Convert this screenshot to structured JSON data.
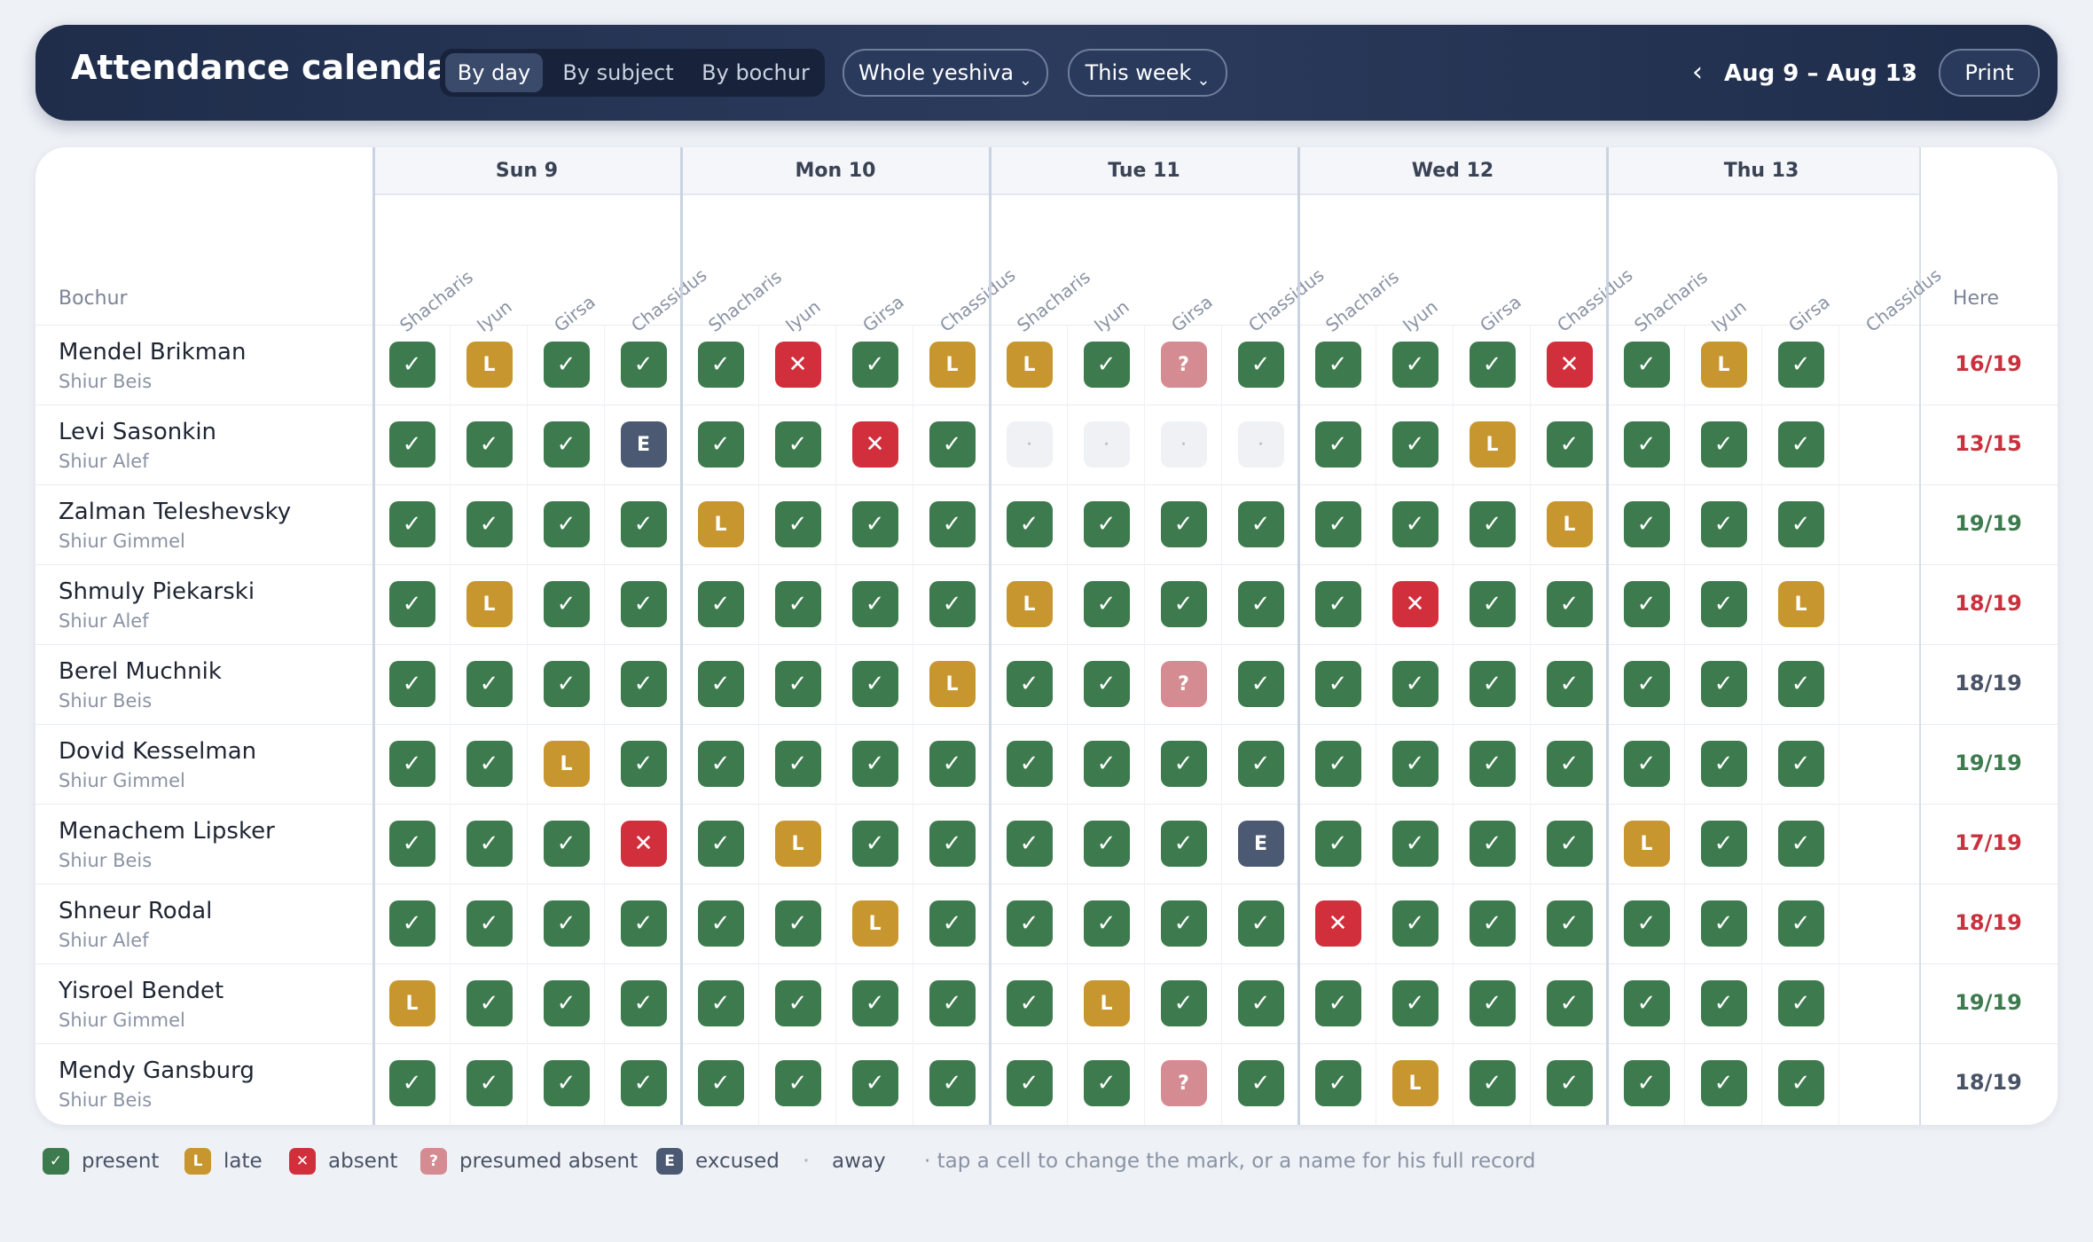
{
  "header": {
    "title": "Attendance calendar",
    "view_tabs": [
      "By day",
      "By subject",
      "By bochur"
    ],
    "active_tab": "By day",
    "scope_filter": "Whole yeshiva",
    "period_filter": "This week",
    "chevron": "⌄",
    "prev_arrow": "‹",
    "next_arrow": "›",
    "date_range": "Aug 9 – Aug 13",
    "print_label": "Print"
  },
  "table": {
    "name_column_label": "Bochur",
    "here_column_label": "Here",
    "days": [
      "Sun 9",
      "Mon 10",
      "Tue 11",
      "Wed 12",
      "Thu 13"
    ],
    "subjects": [
      "Shacharis",
      "Iyun",
      "Girsa",
      "Chassidus"
    ],
    "rows": [
      {
        "name": "Mendel Brikman",
        "shiur": "Shiur Beis",
        "here": "16/19",
        "here_status": "bad",
        "marks": [
          "P",
          "L",
          "P",
          "P",
          "P",
          "A",
          "P",
          "L",
          "L",
          "P",
          "Q",
          "P",
          "P",
          "P",
          "P",
          "A",
          "P",
          "L",
          "P",
          ""
        ]
      },
      {
        "name": "Levi Sasonkin",
        "shiur": "Shiur Alef",
        "here": "13/15",
        "here_status": "bad",
        "marks": [
          "P",
          "P",
          "P",
          "E",
          "P",
          "P",
          "A",
          "P",
          "W",
          "W",
          "W",
          "W",
          "P",
          "P",
          "L",
          "P",
          "P",
          "P",
          "P",
          ""
        ]
      },
      {
        "name": "Zalman Teleshevsky",
        "shiur": "Shiur Gimmel",
        "here": "19/19",
        "here_status": "good",
        "marks": [
          "P",
          "P",
          "P",
          "P",
          "L",
          "P",
          "P",
          "P",
          "P",
          "P",
          "P",
          "P",
          "P",
          "P",
          "P",
          "L",
          "P",
          "P",
          "P",
          ""
        ]
      },
      {
        "name": "Shmuly Piekarski",
        "shiur": "Shiur Alef",
        "here": "18/19",
        "here_status": "bad",
        "marks": [
          "P",
          "L",
          "P",
          "P",
          "P",
          "P",
          "P",
          "P",
          "L",
          "P",
          "P",
          "P",
          "P",
          "A",
          "P",
          "P",
          "P",
          "P",
          "L",
          ""
        ]
      },
      {
        "name": "Berel Muchnik",
        "shiur": "Shiur Beis",
        "here": "18/19",
        "here_status": "neutral",
        "marks": [
          "P",
          "P",
          "P",
          "P",
          "P",
          "P",
          "P",
          "L",
          "P",
          "P",
          "Q",
          "P",
          "P",
          "P",
          "P",
          "P",
          "P",
          "P",
          "P",
          ""
        ]
      },
      {
        "name": "Dovid Kesselman",
        "shiur": "Shiur Gimmel",
        "here": "19/19",
        "here_status": "good",
        "marks": [
          "P",
          "P",
          "L",
          "P",
          "P",
          "P",
          "P",
          "P",
          "P",
          "P",
          "P",
          "P",
          "P",
          "P",
          "P",
          "P",
          "P",
          "P",
          "P",
          ""
        ]
      },
      {
        "name": "Menachem Lipsker",
        "shiur": "Shiur Beis",
        "here": "17/19",
        "here_status": "bad",
        "marks": [
          "P",
          "P",
          "P",
          "A",
          "P",
          "L",
          "P",
          "P",
          "P",
          "P",
          "P",
          "E",
          "P",
          "P",
          "P",
          "P",
          "L",
          "P",
          "P",
          ""
        ]
      },
      {
        "name": "Shneur Rodal",
        "shiur": "Shiur Alef",
        "here": "18/19",
        "here_status": "bad",
        "marks": [
          "P",
          "P",
          "P",
          "P",
          "P",
          "P",
          "L",
          "P",
          "P",
          "P",
          "P",
          "P",
          "A",
          "P",
          "P",
          "P",
          "P",
          "P",
          "P",
          ""
        ]
      },
      {
        "name": "Yisroel Bendet",
        "shiur": "Shiur Gimmel",
        "here": "19/19",
        "here_status": "good",
        "marks": [
          "L",
          "P",
          "P",
          "P",
          "P",
          "P",
          "P",
          "P",
          "P",
          "L",
          "P",
          "P",
          "P",
          "P",
          "P",
          "P",
          "P",
          "P",
          "P",
          ""
        ]
      },
      {
        "name": "Mendy Gansburg",
        "shiur": "Shiur Beis",
        "here": "18/19",
        "here_status": "neutral",
        "marks": [
          "P",
          "P",
          "P",
          "P",
          "P",
          "P",
          "P",
          "P",
          "P",
          "P",
          "Q",
          "P",
          "P",
          "L",
          "P",
          "P",
          "P",
          "P",
          "P",
          ""
        ]
      }
    ]
  },
  "mark_types": {
    "P": {
      "glyph": "✓",
      "class": "present",
      "icon": "check-icon"
    },
    "L": {
      "glyph": "L",
      "class": "late",
      "icon": "late-icon"
    },
    "A": {
      "glyph": "✕",
      "class": "absent",
      "icon": "x-icon"
    },
    "Q": {
      "glyph": "?",
      "class": "presumed",
      "icon": "question-icon"
    },
    "E": {
      "glyph": "E",
      "class": "excused",
      "icon": "excused-icon"
    },
    "W": {
      "glyph": "·",
      "class": "away",
      "icon": "dot-icon"
    }
  },
  "legend": [
    {
      "key": "P",
      "label": "present"
    },
    {
      "key": "L",
      "label": "late"
    },
    {
      "key": "A",
      "label": "absent"
    },
    {
      "key": "Q",
      "label": "presumed absent"
    },
    {
      "key": "E",
      "label": "excused"
    },
    {
      "key": "W",
      "label": "away"
    }
  ],
  "legend_hint": "· tap a cell to change the mark, or a name for his full record",
  "colors": {
    "present": "#3d7a4e",
    "late": "#c8962e",
    "absent": "#d22f3d",
    "presumed_absent": "#d58b92",
    "excused": "#4b5a72",
    "away": "#eff1f4",
    "header_bg": "#1f2d4b"
  }
}
